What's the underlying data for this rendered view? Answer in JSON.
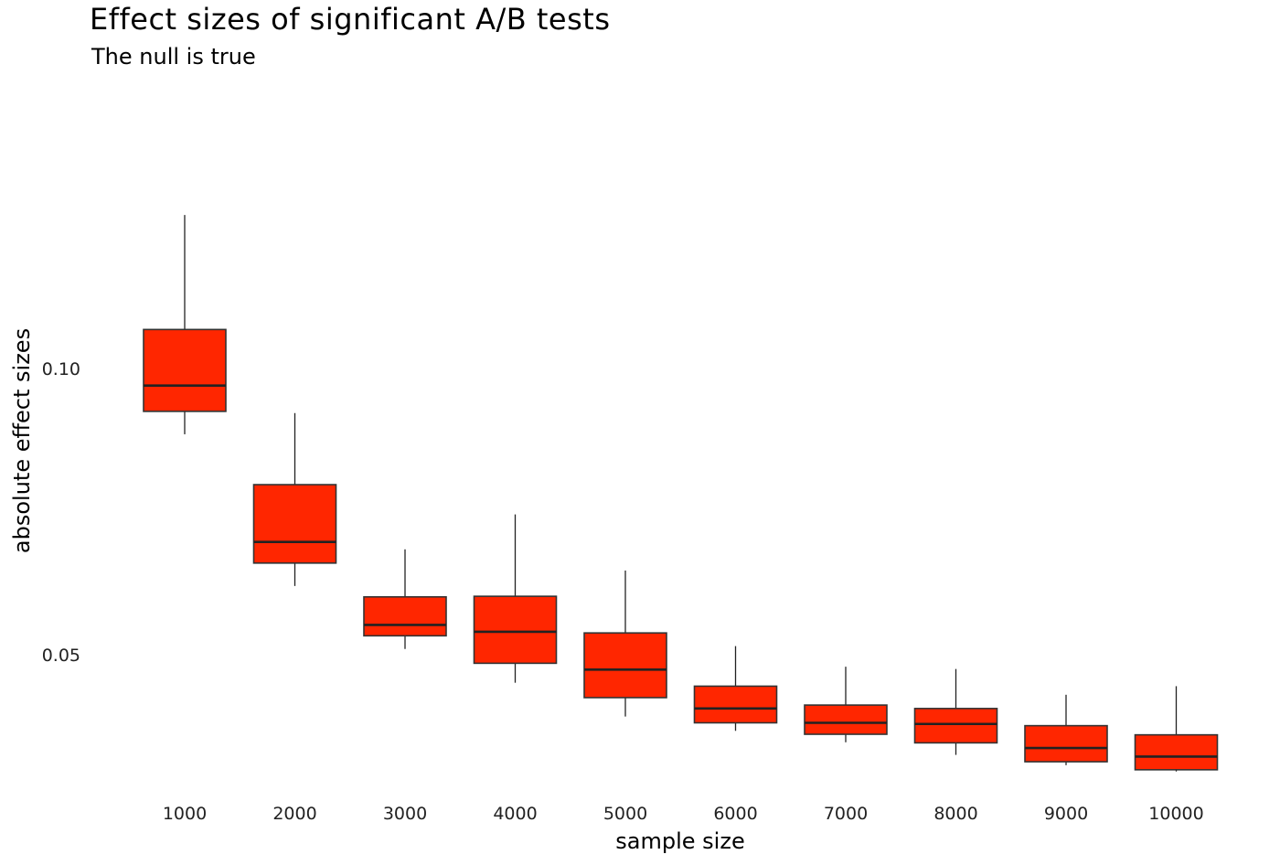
{
  "chart_data": {
    "type": "boxplot",
    "title": "Effect sizes of significant A/B tests",
    "subtitle": "The null is true",
    "xlabel": "sample size",
    "ylabel": "absolute effect sizes",
    "categories": [
      "1000",
      "2000",
      "3000",
      "4000",
      "5000",
      "6000",
      "7000",
      "8000",
      "9000",
      "10000"
    ],
    "yticks": [
      0.05,
      0.1
    ],
    "ytick_labels": [
      "0.05",
      "0.10"
    ],
    "ylim": [
      0.027,
      0.138
    ],
    "grid": false,
    "box_color": "#FF2600",
    "boxes": [
      {
        "whisker_low": 0.0885,
        "q1": 0.0925,
        "median": 0.097,
        "q3": 0.1068,
        "whisker_high": 0.1268
      },
      {
        "whisker_low": 0.062,
        "q1": 0.066,
        "median": 0.0697,
        "q3": 0.0797,
        "whisker_high": 0.0922
      },
      {
        "whisker_low": 0.051,
        "q1": 0.0533,
        "median": 0.0552,
        "q3": 0.0601,
        "whisker_high": 0.0684
      },
      {
        "whisker_low": 0.0451,
        "q1": 0.0485,
        "median": 0.054,
        "q3": 0.0602,
        "whisker_high": 0.0745
      },
      {
        "whisker_low": 0.0392,
        "q1": 0.0425,
        "median": 0.0474,
        "q3": 0.0538,
        "whisker_high": 0.0647
      },
      {
        "whisker_low": 0.0367,
        "q1": 0.0381,
        "median": 0.0406,
        "q3": 0.0445,
        "whisker_high": 0.0515
      },
      {
        "whisker_low": 0.0347,
        "q1": 0.0361,
        "median": 0.0381,
        "q3": 0.0412,
        "whisker_high": 0.0479
      },
      {
        "whisker_low": 0.0325,
        "q1": 0.0346,
        "median": 0.0379,
        "q3": 0.0406,
        "whisker_high": 0.0475
      },
      {
        "whisker_low": 0.0307,
        "q1": 0.0313,
        "median": 0.0337,
        "q3": 0.0376,
        "whisker_high": 0.043
      },
      {
        "whisker_low": 0.0296,
        "q1": 0.0299,
        "median": 0.0322,
        "q3": 0.036,
        "whisker_high": 0.0445
      }
    ]
  }
}
